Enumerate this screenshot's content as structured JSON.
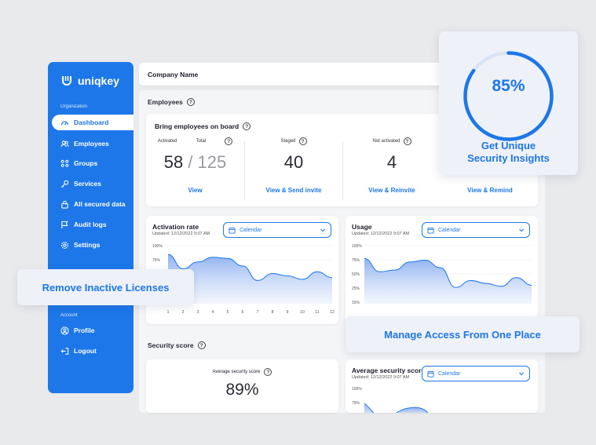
{
  "brand": {
    "name": "uniqkey"
  },
  "sidebar": {
    "org_label": "Organization",
    "account_label": "Account",
    "items": [
      {
        "label": "Dashboard",
        "icon": "gauge-icon"
      },
      {
        "label": "Employees",
        "icon": "users-icon"
      },
      {
        "label": "Groups",
        "icon": "groups-icon"
      },
      {
        "label": "Services",
        "icon": "key-icon"
      },
      {
        "label": "All secured data",
        "icon": "lock-icon"
      },
      {
        "label": "Audit logs",
        "icon": "flag-icon"
      },
      {
        "label": "Settings",
        "icon": "gear-icon"
      }
    ],
    "account_items": [
      {
        "label": "Profile",
        "icon": "user-icon"
      },
      {
        "label": "Logout",
        "icon": "logout-icon"
      }
    ]
  },
  "header": {
    "company": "Company Name"
  },
  "employees": {
    "section_title": "Employees",
    "card_title": "Bring employees on board",
    "activated": {
      "label": "Activated",
      "total_label": "Total",
      "value": "58",
      "total": "125",
      "link": "View"
    },
    "staged": {
      "label": "Staged",
      "value": "40",
      "link": "View & Send invite"
    },
    "not_activated": {
      "label": "Not activated",
      "value": "4",
      "link": "View & Reinvite"
    },
    "fourth": {
      "link": "View & Remind"
    }
  },
  "activation_chart": {
    "title": "Activation rate",
    "updated": "Updated: 12/12/2022 9:07 AM",
    "calendar": "Calendar",
    "y_ticks": [
      "100%",
      "75%"
    ],
    "x_ticks": [
      "1",
      "2",
      "3",
      "4",
      "5",
      "6",
      "7",
      "8",
      "9",
      "10",
      "11",
      "12"
    ]
  },
  "usage_chart": {
    "title": "Usage",
    "updated": "Updated: 12/12/2022 9:07 AM",
    "calendar": "Calendar",
    "y_ticks": [
      "100%",
      "75%",
      "50%",
      "25%",
      "15%"
    ]
  },
  "security": {
    "section_title": "Security score",
    "avg_label": "Average security score",
    "avg_value": "89%",
    "chart_title": "Average security score",
    "updated": "Updated: 12/12/2022 9:07 AM",
    "calendar": "Calendar",
    "y_ticks": [
      "100%",
      "75%"
    ]
  },
  "callouts": {
    "insight_pct": "85%",
    "insight_text_1": "Get Unique",
    "insight_text_2": "Security Insights",
    "inactive": "Remove Inactive Licenses",
    "access": "Manage Access From One Place"
  },
  "chart_data": [
    {
      "type": "area",
      "title": "Activation rate",
      "x": [
        1,
        2,
        3,
        4,
        5,
        6,
        7,
        8,
        9,
        10,
        11,
        12
      ],
      "values": [
        85,
        60,
        72,
        80,
        78,
        65,
        40,
        52,
        48,
        42,
        55,
        45
      ],
      "ylim": [
        0,
        100
      ]
    },
    {
      "type": "area",
      "title": "Usage",
      "x": [
        1,
        2,
        3,
        4,
        5,
        6,
        7,
        8,
        9,
        10,
        11,
        12
      ],
      "values": [
        78,
        55,
        58,
        72,
        75,
        62,
        28,
        40,
        35,
        30,
        45,
        32
      ],
      "ylim": [
        0,
        100
      ]
    }
  ],
  "colors": {
    "primary": "#1d77e8",
    "area_top": "#8fb1f0",
    "area_bottom": "#eaf0fc"
  }
}
